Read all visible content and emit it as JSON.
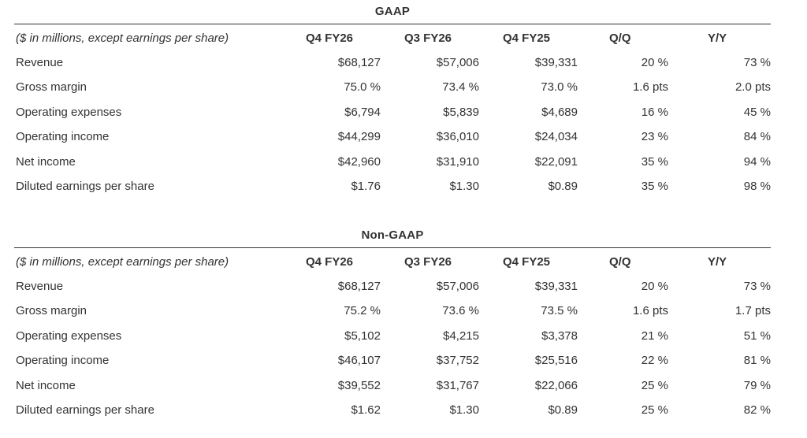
{
  "colors": {
    "text": "#333333",
    "rule": "#333333",
    "background": "#ffffff"
  },
  "tables": [
    {
      "title": "GAAP",
      "unit_note": "($ in millions, except earnings per share)",
      "columns": [
        "Q4 FY26",
        "Q3 FY26",
        "Q4 FY25",
        "Q/Q",
        "Y/Y"
      ],
      "rows": [
        {
          "label": "Revenue",
          "values": [
            "$68,127",
            "$57,006",
            "$39,331",
            "20 %",
            "73 %"
          ]
        },
        {
          "label": "Gross margin",
          "values": [
            "75.0 %",
            "73.4 %",
            "73.0 %",
            "1.6 pts",
            "2.0 pts"
          ]
        },
        {
          "label": "Operating expenses",
          "values": [
            "$6,794",
            "$5,839",
            "$4,689",
            "16 %",
            "45 %"
          ]
        },
        {
          "label": "Operating income",
          "values": [
            "$44,299",
            "$36,010",
            "$24,034",
            "23 %",
            "84 %"
          ]
        },
        {
          "label": "Net income",
          "values": [
            "$42,960",
            "$31,910",
            "$22,091",
            "35 %",
            "94 %"
          ]
        },
        {
          "label": "Diluted earnings per share",
          "values": [
            "$1.76",
            "$1.30",
            "$0.89",
            "35 %",
            "98 %"
          ]
        }
      ]
    },
    {
      "title": "Non-GAAP",
      "unit_note": "($ in millions, except earnings per share)",
      "columns": [
        "Q4 FY26",
        "Q3 FY26",
        "Q4 FY25",
        "Q/Q",
        "Y/Y"
      ],
      "rows": [
        {
          "label": "Revenue",
          "values": [
            "$68,127",
            "$57,006",
            "$39,331",
            "20 %",
            "73 %"
          ]
        },
        {
          "label": "Gross margin",
          "values": [
            "75.2 %",
            "73.6 %",
            "73.5 %",
            "1.6 pts",
            "1.7 pts"
          ]
        },
        {
          "label": "Operating expenses",
          "values": [
            "$5,102",
            "$4,215",
            "$3,378",
            "21 %",
            "51 %"
          ]
        },
        {
          "label": "Operating income",
          "values": [
            "$46,107",
            "$37,752",
            "$25,516",
            "22 %",
            "81 %"
          ]
        },
        {
          "label": "Net income",
          "values": [
            "$39,552",
            "$31,767",
            "$22,066",
            "25 %",
            "79 %"
          ]
        },
        {
          "label": "Diluted earnings per share",
          "values": [
            "$1.62",
            "$1.30",
            "$0.89",
            "25 %",
            "82 %"
          ]
        }
      ]
    }
  ]
}
